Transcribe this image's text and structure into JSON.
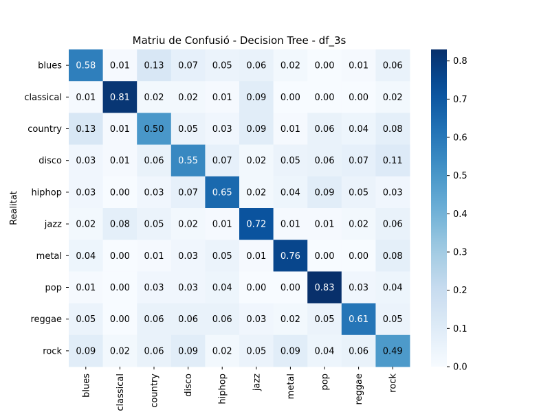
{
  "chart_data": {
    "type": "heatmap",
    "title": "Matriu de Confusió - Decision Tree - df_3s",
    "ylabel": "Realitat",
    "xlabel": "",
    "row_labels": [
      "blues",
      "classical",
      "country",
      "disco",
      "hiphop",
      "jazz",
      "metal",
      "pop",
      "reggae",
      "rock"
    ],
    "col_labels": [
      "blues",
      "classical",
      "country",
      "disco",
      "hiphop",
      "jazz",
      "metal",
      "pop",
      "reggae",
      "rock"
    ],
    "values": [
      [
        0.58,
        0.01,
        0.13,
        0.07,
        0.05,
        0.06,
        0.02,
        0.0,
        0.01,
        0.06
      ],
      [
        0.01,
        0.81,
        0.02,
        0.02,
        0.01,
        0.09,
        0.0,
        0.0,
        0.0,
        0.02
      ],
      [
        0.13,
        0.01,
        0.5,
        0.05,
        0.03,
        0.09,
        0.01,
        0.06,
        0.04,
        0.08
      ],
      [
        0.03,
        0.01,
        0.06,
        0.55,
        0.07,
        0.02,
        0.05,
        0.06,
        0.07,
        0.11
      ],
      [
        0.03,
        0.0,
        0.03,
        0.07,
        0.65,
        0.02,
        0.04,
        0.09,
        0.05,
        0.03
      ],
      [
        0.02,
        0.08,
        0.05,
        0.02,
        0.01,
        0.72,
        0.01,
        0.01,
        0.02,
        0.06
      ],
      [
        0.04,
        0.0,
        0.01,
        0.03,
        0.05,
        0.01,
        0.76,
        0.0,
        0.0,
        0.08
      ],
      [
        0.01,
        0.0,
        0.03,
        0.03,
        0.04,
        0.0,
        0.0,
        0.83,
        0.03,
        0.04
      ],
      [
        0.05,
        0.0,
        0.06,
        0.06,
        0.06,
        0.03,
        0.02,
        0.05,
        0.61,
        0.05
      ],
      [
        0.09,
        0.02,
        0.06,
        0.09,
        0.02,
        0.05,
        0.09,
        0.04,
        0.06,
        0.49
      ]
    ],
    "value_format": "0.00",
    "colormap": "Blues",
    "vmin": 0.0,
    "vmax": 0.83,
    "colorbar_ticks": [
      0.0,
      0.1,
      0.2,
      0.3,
      0.4,
      0.5,
      0.6,
      0.7,
      0.8
    ],
    "colorbar_tick_labels": [
      "0.0",
      "0.1",
      "0.2",
      "0.3",
      "0.4",
      "0.5",
      "0.6",
      "0.7",
      "0.8"
    ]
  },
  "colors": {
    "text_dark": "#000000",
    "text_light": "#ffffff",
    "axis": "#000000"
  }
}
